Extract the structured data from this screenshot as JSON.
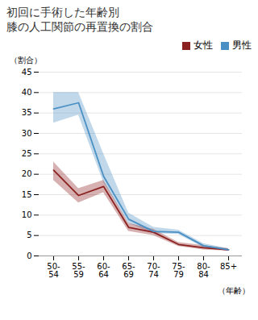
{
  "chart_data": {
    "type": "line",
    "title": "初回に手術した年齢別",
    "subtitle": "膝の人工関節の再置換の割合",
    "x_label": "（年齢）",
    "y_label": "（割合）",
    "categories": [
      "50-\n54",
      "55-\n59",
      "60-\n64",
      "65-\n69",
      "70-\n74",
      "75-\n79",
      "80-\n84",
      "85+"
    ],
    "series": [
      {
        "name": "女性",
        "color": "#8B2020",
        "values": [
          21.0,
          14.8,
          17.0,
          7.0,
          5.8,
          2.8,
          2.0,
          1.5
        ],
        "upper": [
          23.0,
          16.5,
          18.5,
          8.0,
          6.5,
          3.3,
          2.5,
          1.8
        ],
        "lower": [
          18.5,
          13.0,
          15.5,
          6.0,
          5.0,
          2.3,
          1.5,
          1.2
        ]
      },
      {
        "name": "男性",
        "color": "#4A90C4",
        "values": [
          36.0,
          37.5,
          19.5,
          9.0,
          6.0,
          5.8,
          2.5,
          1.5
        ],
        "upper": [
          40.0,
          40.0,
          25.0,
          10.5,
          7.0,
          6.3,
          3.0,
          1.8
        ],
        "lower": [
          32.5,
          34.5,
          18.0,
          8.0,
          5.5,
          5.3,
          2.0,
          1.2
        ]
      }
    ],
    "ylim": [
      0,
      45
    ],
    "yticks": [
      0,
      5,
      10,
      15,
      20,
      25,
      30,
      35,
      40,
      45
    ],
    "grid": true,
    "legend": "upper right"
  }
}
